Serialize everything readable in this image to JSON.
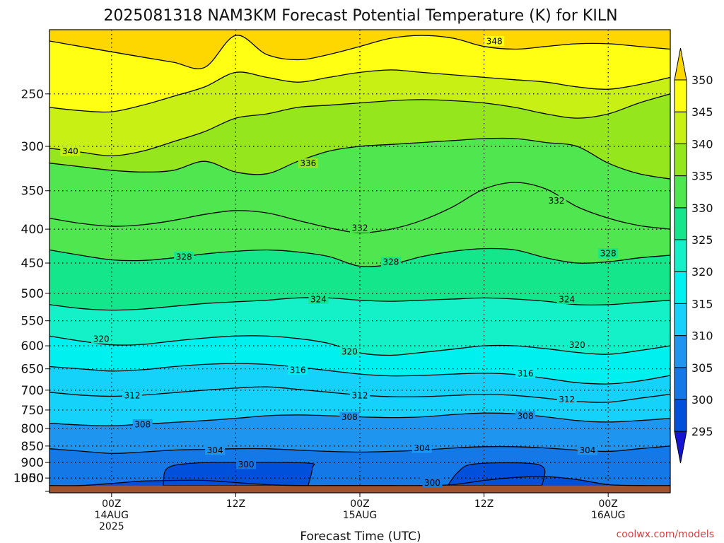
{
  "chart_data": {
    "type": "heatmap",
    "title": "2025081318 NAM3KM Forecast Potential Temperature (K) for KILN",
    "xlabel": "Forecast Time (UTC)",
    "ylabel": "",
    "credit": "coolwx.com/models",
    "y_axis": {
      "scale": "log-pressure",
      "units": "hPa",
      "ticks": [
        250,
        300,
        350,
        400,
        450,
        500,
        550,
        600,
        650,
        700,
        750,
        800,
        850,
        900,
        950,
        1000
      ],
      "ylim": [
        200,
        1000
      ],
      "inverted": true
    },
    "x_axis": {
      "units": "forecast hour",
      "xlim": [
        0,
        60
      ],
      "ticks": [
        {
          "hour": 6,
          "lines": [
            "00Z",
            "14AUG",
            "2025"
          ]
        },
        {
          "hour": 18,
          "lines": [
            "12Z"
          ]
        },
        {
          "hour": 30,
          "lines": [
            "00Z",
            "15AUG"
          ]
        },
        {
          "hour": 42,
          "lines": [
            "12Z"
          ]
        },
        {
          "hour": 54,
          "lines": [
            "00Z",
            "16AUG"
          ]
        }
      ]
    },
    "grid": true,
    "colorbar": {
      "position": "right",
      "levels": [
        295,
        300,
        305,
        310,
        315,
        320,
        325,
        330,
        335,
        340,
        345,
        350
      ],
      "colors": [
        "#1414d2",
        "#0050dc",
        "#1478e6",
        "#1e96f0",
        "#14d2fa",
        "#00f0f0",
        "#14f0c8",
        "#14e68c",
        "#50e650",
        "#96e61e",
        "#c8f014",
        "#ffff14",
        "#ffd700"
      ]
    },
    "ground": {
      "color": "#a0522d",
      "pressure": 975
    },
    "isentropes": [
      {
        "theta": 300,
        "pressure": [
          975,
          975,
          968,
          960,
          958,
          958,
          965,
          972,
          975,
          975,
          975,
          975,
          975,
          972,
          958,
          948,
          945,
          955,
          972,
          975,
          975
        ]
      },
      {
        "theta": 304,
        "pressure": [
          858,
          865,
          872,
          868,
          862,
          860,
          858,
          858,
          862,
          866,
          868,
          866,
          862,
          856,
          852,
          852,
          856,
          862,
          866,
          858,
          850
        ]
      },
      {
        "theta": 308,
        "pressure": [
          785,
          790,
          792,
          788,
          783,
          778,
          772,
          765,
          763,
          765,
          768,
          770,
          768,
          762,
          758,
          760,
          768,
          778,
          782,
          778,
          772
        ]
      },
      {
        "theta": 312,
        "pressure": [
          705,
          712,
          715,
          712,
          706,
          700,
          695,
          692,
          698,
          705,
          712,
          716,
          716,
          713,
          710,
          713,
          720,
          728,
          730,
          720,
          710
        ]
      },
      {
        "theta": 316,
        "pressure": [
          645,
          650,
          655,
          652,
          645,
          640,
          638,
          640,
          646,
          654,
          662,
          666,
          665,
          662,
          660,
          663,
          672,
          682,
          685,
          678,
          665
        ]
      },
      {
        "theta": 320,
        "pressure": [
          580,
          590,
          598,
          597,
          590,
          584,
          580,
          580,
          585,
          595,
          615,
          620,
          614,
          607,
          600,
          600,
          606,
          614,
          618,
          610,
          600
        ]
      },
      {
        "theta": 324,
        "pressure": [
          520,
          527,
          530,
          528,
          523,
          518,
          515,
          512,
          508,
          508,
          512,
          514,
          512,
          510,
          508,
          510,
          514,
          520,
          520,
          516,
          512
        ]
      },
      {
        "theta": 328,
        "pressure": [
          430,
          438,
          445,
          446,
          442,
          436,
          432,
          430,
          433,
          440,
          455,
          452,
          440,
          432,
          428,
          430,
          442,
          450,
          448,
          442,
          438
        ]
      },
      {
        "theta": 332,
        "pressure": [
          385,
          392,
          396,
          394,
          388,
          380,
          375,
          378,
          388,
          398,
          405,
          400,
          388,
          370,
          348,
          340,
          348,
          370,
          385,
          395,
          400
        ]
      },
      {
        "theta": 336,
        "pressure": [
          318,
          322,
          326,
          328,
          326,
          316,
          328,
          330,
          316,
          305,
          300,
          298,
          296,
          294,
          292,
          292,
          296,
          300,
          318,
          330,
          336
        ]
      },
      {
        "theta": 340,
        "pressure": [
          302,
          306,
          310,
          305,
          295,
          285,
          272,
          268,
          262,
          260,
          258,
          256,
          255,
          256,
          258,
          262,
          268,
          272,
          268,
          258,
          250
        ]
      },
      {
        "theta": 344,
        "pressure": [
          262,
          265,
          266,
          260,
          252,
          244,
          232,
          236,
          240,
          236,
          232,
          230,
          232,
          234,
          236,
          238,
          240,
          244,
          246,
          242,
          236
        ]
      },
      {
        "theta": 348,
        "pressure": [
          208,
          212,
          216,
          220,
          224,
          228,
          204,
          218,
          222,
          218,
          212,
          206,
          204,
          206,
          212,
          214,
          212,
          210,
          210,
          212,
          214
        ]
      }
    ],
    "contour_labels": [
      {
        "text": "348",
        "hour": 43,
        "pressure": 208
      },
      {
        "text": "340",
        "hour": 2,
        "pressure": 305
      },
      {
        "text": "336",
        "hour": 25,
        "pressure": 318
      },
      {
        "text": "332",
        "hour": 49,
        "pressure": 362
      },
      {
        "text": "332",
        "hour": 30,
        "pressure": 398
      },
      {
        "text": "328",
        "hour": 13,
        "pressure": 440
      },
      {
        "text": "328",
        "hour": 33,
        "pressure": 448
      },
      {
        "text": "328",
        "hour": 54,
        "pressure": 435
      },
      {
        "text": "324",
        "hour": 26,
        "pressure": 510
      },
      {
        "text": "324",
        "hour": 50,
        "pressure": 510
      },
      {
        "text": "320",
        "hour": 5,
        "pressure": 585
      },
      {
        "text": "320",
        "hour": 29,
        "pressure": 612
      },
      {
        "text": "320",
        "hour": 51,
        "pressure": 598
      },
      {
        "text": "316",
        "hour": 24,
        "pressure": 652
      },
      {
        "text": "316",
        "hour": 46,
        "pressure": 660
      },
      {
        "text": "312",
        "hour": 8,
        "pressure": 712
      },
      {
        "text": "312",
        "hour": 30,
        "pressure": 712
      },
      {
        "text": "312",
        "hour": 50,
        "pressure": 722
      },
      {
        "text": "308",
        "hour": 9,
        "pressure": 788
      },
      {
        "text": "308",
        "hour": 29,
        "pressure": 768
      },
      {
        "text": "308",
        "hour": 46,
        "pressure": 765
      },
      {
        "text": "304",
        "hour": 16,
        "pressure": 862
      },
      {
        "text": "304",
        "hour": 36,
        "pressure": 856
      },
      {
        "text": "304",
        "hour": 52,
        "pressure": 862
      },
      {
        "text": "300",
        "hour": 19,
        "pressure": 905
      },
      {
        "text": "300",
        "hour": 37,
        "pressure": 965
      }
    ],
    "cold_pools": [
      {
        "name": "cold-pool-overnight-14aug",
        "points": [
          [
            11,
            975
          ],
          [
            11.4,
            918
          ],
          [
            14,
            902
          ],
          [
            19,
            900
          ],
          [
            25,
            902
          ],
          [
            25.4,
            918
          ],
          [
            25,
            975
          ]
        ]
      },
      {
        "name": "cold-pool-overnight-15aug",
        "points": [
          [
            38.5,
            975
          ],
          [
            39.5,
            930
          ],
          [
            41,
            905
          ],
          [
            46,
            902
          ],
          [
            47.8,
            918
          ],
          [
            47.6,
            975
          ]
        ]
      }
    ]
  }
}
